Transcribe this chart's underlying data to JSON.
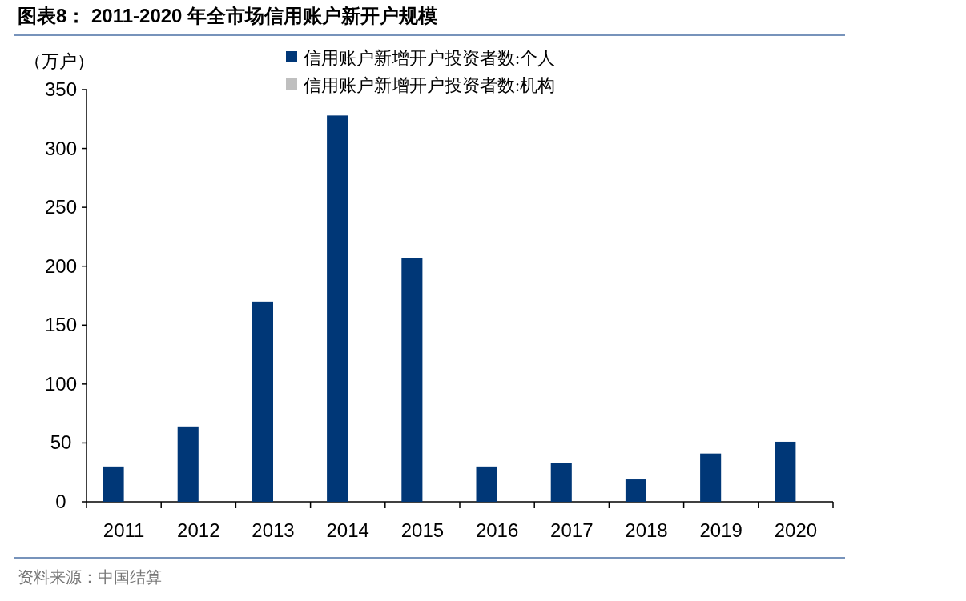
{
  "chart_data": {
    "type": "bar",
    "title": "图表8：  2011-2020 年全市场信用账户新开户规模",
    "ylabel": "（万户）",
    "categories": [
      "2011",
      "2012",
      "2013",
      "2014",
      "2015",
      "2016",
      "2017",
      "2018",
      "2019",
      "2020"
    ],
    "series": [
      {
        "name": "信用账户新增开户投资者数:个人",
        "color": "#003777",
        "values": [
          30,
          64,
          170,
          328,
          207,
          30,
          33,
          19,
          41,
          51
        ]
      },
      {
        "name": "信用账户新增开户投资者数:机构",
        "color": "#bfbfbf",
        "values": [
          0,
          0,
          0,
          0,
          0,
          0,
          0,
          0,
          0,
          0
        ]
      }
    ],
    "ylim": [
      0,
      350
    ],
    "yticks": [
      0,
      50,
      100,
      150,
      200,
      250,
      300,
      350
    ],
    "grid": false,
    "legend": "top",
    "annotations": [
      "资料来源：中国结算"
    ]
  }
}
